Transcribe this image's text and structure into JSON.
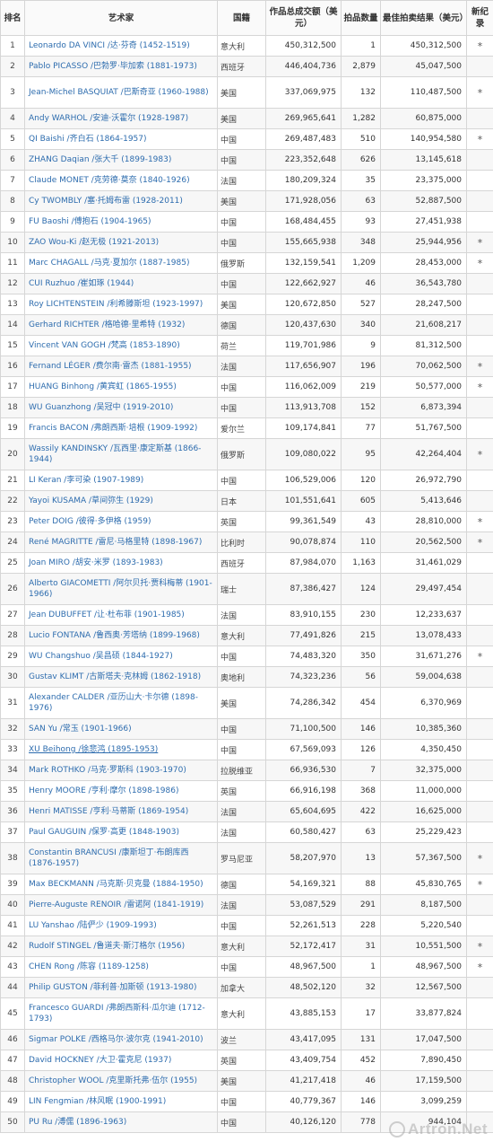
{
  "table": {
    "headers": {
      "rank": "排名",
      "artist": "艺术家",
      "country": "国籍",
      "total": "作品总成交额（美元）",
      "lots": "拍品数量",
      "best": "最佳拍卖结果（美元）",
      "new_record": "新纪录"
    },
    "rows": [
      {
        "rank": "1",
        "artist": "Leonardo DA VINCI /达·芬奇 (1452-1519)",
        "country": "意大利",
        "total": "450,312,500",
        "lots": "1",
        "best": "450,312,500",
        "new": "*"
      },
      {
        "rank": "2",
        "artist": "Pablo PICASSO /巴勃罗·毕加索 (1881-1973)",
        "country": "西班牙",
        "total": "446,404,736",
        "lots": "2,879",
        "best": "45,047,500",
        "new": ""
      },
      {
        "rank": "3",
        "artist": "Jean-Michel BASQUIAT /巴斯奇亚 (1960-1988)",
        "country": "美国",
        "total": "337,069,975",
        "lots": "132",
        "best": "110,487,500",
        "new": "*"
      },
      {
        "rank": "4",
        "artist": "Andy WARHOL /安迪·沃霍尔 (1928-1987)",
        "country": "美国",
        "total": "269,965,641",
        "lots": "1,282",
        "best": "60,875,000",
        "new": ""
      },
      {
        "rank": "5",
        "artist": "QI Baishi /齐白石 (1864-1957)",
        "country": "中国",
        "total": "269,487,483",
        "lots": "510",
        "best": "140,954,580",
        "new": "*"
      },
      {
        "rank": "6",
        "artist": "ZHANG Daqian /张大千 (1899-1983)",
        "country": "中国",
        "total": "223,352,648",
        "lots": "626",
        "best": "13,145,618",
        "new": ""
      },
      {
        "rank": "7",
        "artist": "Claude MONET /克劳德·莫奈 (1840-1926)",
        "country": "法国",
        "total": "180,209,324",
        "lots": "35",
        "best": "23,375,000",
        "new": ""
      },
      {
        "rank": "8",
        "artist": "Cy TWOMBLY /塞·托姆布雷 (1928-2011)",
        "country": "美国",
        "total": "171,928,056",
        "lots": "63",
        "best": "52,887,500",
        "new": ""
      },
      {
        "rank": "9",
        "artist": "FU Baoshi /傅抱石 (1904-1965)",
        "country": "中国",
        "total": "168,484,455",
        "lots": "93",
        "best": "27,451,938",
        "new": ""
      },
      {
        "rank": "10",
        "artist": "ZAO Wou-Ki /赵无极 (1921-2013)",
        "country": "中国",
        "total": "155,665,938",
        "lots": "348",
        "best": "25,944,956",
        "new": "*"
      },
      {
        "rank": "11",
        "artist": "Marc CHAGALL /马克·夏加尔 (1887-1985)",
        "country": "俄罗斯",
        "total": "132,159,541",
        "lots": "1,209",
        "best": "28,453,000",
        "new": "*"
      },
      {
        "rank": "12",
        "artist": "CUI Ruzhuo /崔如琢 (1944)",
        "country": "中国",
        "total": "122,662,927",
        "lots": "46",
        "best": "36,543,780",
        "new": ""
      },
      {
        "rank": "13",
        "artist": "Roy LICHTENSTEIN /利希滕斯坦 (1923-1997)",
        "country": "美国",
        "total": "120,672,850",
        "lots": "527",
        "best": "28,247,500",
        "new": ""
      },
      {
        "rank": "14",
        "artist": "Gerhard RICHTER /格哈德·里希特 (1932)",
        "country": "德国",
        "total": "120,437,630",
        "lots": "340",
        "best": "21,608,217",
        "new": ""
      },
      {
        "rank": "15",
        "artist": "Vincent VAN GOGH /梵高 (1853-1890)",
        "country": "荷兰",
        "total": "119,701,986",
        "lots": "9",
        "best": "81,312,500",
        "new": ""
      },
      {
        "rank": "16",
        "artist": "Fernand LÉGER /费尔南·雷杰 (1881-1955)",
        "country": "法国",
        "total": "117,656,907",
        "lots": "196",
        "best": "70,062,500",
        "new": "*"
      },
      {
        "rank": "17",
        "artist": "HUANG Binhong /黄宾虹 (1865-1955)",
        "country": "中国",
        "total": "116,062,009",
        "lots": "219",
        "best": "50,577,000",
        "new": "*"
      },
      {
        "rank": "18",
        "artist": "WU Guanzhong /吴冠中 (1919-2010)",
        "country": "中国",
        "total": "113,913,708",
        "lots": "152",
        "best": "6,873,394",
        "new": ""
      },
      {
        "rank": "19",
        "artist": "Francis BACON /弗朗西斯·培根 (1909-1992)",
        "country": "爱尔兰",
        "total": "109,174,841",
        "lots": "77",
        "best": "51,767,500",
        "new": ""
      },
      {
        "rank": "20",
        "artist": "Wassily KANDINSKY /瓦西里·康定斯基 (1866-1944)",
        "country": "俄罗斯",
        "total": "109,080,022",
        "lots": "95",
        "best": "42,264,404",
        "new": "*"
      },
      {
        "rank": "21",
        "artist": "LI Keran /李可染 (1907-1989)",
        "country": "中国",
        "total": "106,529,006",
        "lots": "120",
        "best": "26,972,790",
        "new": ""
      },
      {
        "rank": "22",
        "artist": "Yayoi KUSAMA /草间弥生 (1929)",
        "country": "日本",
        "total": "101,551,641",
        "lots": "605",
        "best": "5,413,646",
        "new": ""
      },
      {
        "rank": "23",
        "artist": "Peter DOIG /彼得·多伊格 (1959)",
        "country": "英国",
        "total": "99,361,549",
        "lots": "43",
        "best": "28,810,000",
        "new": "*"
      },
      {
        "rank": "24",
        "artist": "René MAGRITTE /雷尼·马格里特 (1898-1967)",
        "country": "比利时",
        "total": "90,078,874",
        "lots": "110",
        "best": "20,562,500",
        "new": "*"
      },
      {
        "rank": "25",
        "artist": "Joan MIRO /胡安·米罗 (1893-1983)",
        "country": "西班牙",
        "total": "87,984,070",
        "lots": "1,163",
        "best": "31,461,029",
        "new": ""
      },
      {
        "rank": "26",
        "artist": "Alberto GIACOMETTI /阿尔贝托·贾科梅蒂 (1901-1966)",
        "country": "瑞士",
        "total": "87,386,427",
        "lots": "124",
        "best": "29,497,454",
        "new": ""
      },
      {
        "rank": "27",
        "artist": "Jean DUBUFFET /让·杜布菲 (1901-1985)",
        "country": "法国",
        "total": "83,910,155",
        "lots": "230",
        "best": "12,233,637",
        "new": ""
      },
      {
        "rank": "28",
        "artist": "Lucio FONTANA /鲁西奥·芳塔纳 (1899-1968)",
        "country": "意大利",
        "total": "77,491,826",
        "lots": "215",
        "best": "13,078,433",
        "new": ""
      },
      {
        "rank": "29",
        "artist": "WU Changshuo /吴昌硕 (1844-1927)",
        "country": "中国",
        "total": "74,483,320",
        "lots": "350",
        "best": "31,671,276",
        "new": "*"
      },
      {
        "rank": "30",
        "artist": "Gustav KLIMT /古斯塔夫·克林姆 (1862-1918)",
        "country": "奥地利",
        "total": "74,323,236",
        "lots": "56",
        "best": "59,004,638",
        "new": ""
      },
      {
        "rank": "31",
        "artist": "Alexander CALDER /亚历山大·卡尔德 (1898-1976)",
        "country": "美国",
        "total": "74,286,342",
        "lots": "454",
        "best": "6,370,969",
        "new": ""
      },
      {
        "rank": "32",
        "artist": "SAN Yu /常玉 (1901-1966)",
        "country": "中国",
        "total": "71,100,500",
        "lots": "146",
        "best": "10,385,360",
        "new": ""
      },
      {
        "rank": "33",
        "artist": "XU Beihong /徐悲鸿 (1895-1953)",
        "country": "中国",
        "total": "67,569,093",
        "lots": "126",
        "best": "4,350,450",
        "new": "",
        "ul": true
      },
      {
        "rank": "34",
        "artist": "Mark ROTHKO /马克·罗斯科 (1903-1970)",
        "country": "拉脱维亚",
        "total": "66,936,530",
        "lots": "7",
        "best": "32,375,000",
        "new": ""
      },
      {
        "rank": "35",
        "artist": "Henry MOORE /亨利·摩尔 (1898-1986)",
        "country": "英国",
        "total": "66,916,198",
        "lots": "368",
        "best": "11,000,000",
        "new": ""
      },
      {
        "rank": "36",
        "artist": "Henri MATISSE /亨利·马蒂斯 (1869-1954)",
        "country": "法国",
        "total": "65,604,695",
        "lots": "422",
        "best": "16,625,000",
        "new": ""
      },
      {
        "rank": "37",
        "artist": "Paul GAUGUIN /保罗·高更 (1848-1903)",
        "country": "法国",
        "total": "60,580,427",
        "lots": "63",
        "best": "25,229,423",
        "new": ""
      },
      {
        "rank": "38",
        "artist": "Constantin BRANCUSI /康斯坦丁·布朗库西 (1876-1957)",
        "country": "罗马尼亚",
        "total": "58,207,970",
        "lots": "13",
        "best": "57,367,500",
        "new": "*"
      },
      {
        "rank": "39",
        "artist": "Max BECKMANN /马克斯·贝克曼 (1884-1950)",
        "country": "德国",
        "total": "54,169,321",
        "lots": "88",
        "best": "45,830,765",
        "new": "*"
      },
      {
        "rank": "40",
        "artist": "Pierre-Auguste RENOIR /雷诺阿 (1841-1919)",
        "country": "法国",
        "total": "53,087,529",
        "lots": "291",
        "best": "8,187,500",
        "new": ""
      },
      {
        "rank": "41",
        "artist": "LU Yanshao /陆俨少 (1909-1993)",
        "country": "中国",
        "total": "52,261,513",
        "lots": "228",
        "best": "5,220,540",
        "new": ""
      },
      {
        "rank": "42",
        "artist": "Rudolf STINGEL /鲁道夫·斯汀格尔 (1956)",
        "country": "意大利",
        "total": "52,172,417",
        "lots": "31",
        "best": "10,551,500",
        "new": "*"
      },
      {
        "rank": "43",
        "artist": "CHEN Rong /陈容 (1189-1258)",
        "country": "中国",
        "total": "48,967,500",
        "lots": "1",
        "best": "48,967,500",
        "new": "*"
      },
      {
        "rank": "44",
        "artist": "Philip GUSTON /菲利普·加斯顿 (1913-1980)",
        "country": "加拿大",
        "total": "48,502,120",
        "lots": "32",
        "best": "12,567,500",
        "new": ""
      },
      {
        "rank": "45",
        "artist": "Francesco GUARDI /弗朗西斯科·瓜尔迪 (1712-1793)",
        "country": "意大利",
        "total": "43,885,153",
        "lots": "17",
        "best": "33,877,824",
        "new": ""
      },
      {
        "rank": "46",
        "artist": "Sigmar POLKE /西格马尔·波尔克 (1941-2010)",
        "country": "波兰",
        "total": "43,417,095",
        "lots": "131",
        "best": "17,047,500",
        "new": ""
      },
      {
        "rank": "47",
        "artist": "David HOCKNEY /大卫·霍克尼 (1937)",
        "country": "英国",
        "total": "43,409,754",
        "lots": "452",
        "best": "7,890,450",
        "new": ""
      },
      {
        "rank": "48",
        "artist": "Christopher WOOL /克里斯托弗·伍尔 (1955)",
        "country": "美国",
        "total": "41,217,418",
        "lots": "46",
        "best": "17,159,500",
        "new": ""
      },
      {
        "rank": "49",
        "artist": "LIN Fengmian /林风眠 (1900-1991)",
        "country": "中国",
        "total": "40,779,367",
        "lots": "146",
        "best": "3,099,259",
        "new": ""
      },
      {
        "rank": "50",
        "artist": "PU Ru /溥儒 (1896-1963)",
        "country": "中国",
        "total": "40,126,120",
        "lots": "778",
        "best": "944,104",
        "new": ""
      }
    ]
  },
  "watermark": "Artron.Net"
}
